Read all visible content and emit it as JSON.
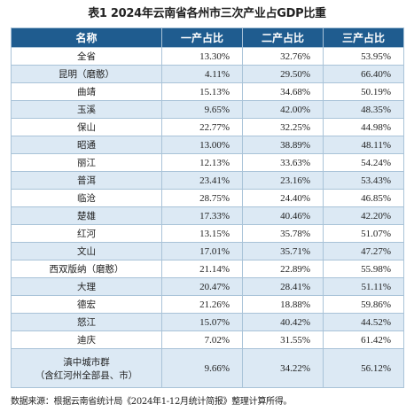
{
  "title": "表1 2024年云南省各州市三次产业占GDP比重",
  "headers": [
    "名称",
    "一产占比",
    "二产占比",
    "三产占比"
  ],
  "rows": [
    {
      "name": "全省",
      "primary": "13.30%",
      "secondary": "32.76%",
      "tertiary": "53.95%"
    },
    {
      "name": "昆明（磨憨）",
      "primary": "4.11%",
      "secondary": "29.50%",
      "tertiary": "66.40%"
    },
    {
      "name": "曲靖",
      "primary": "15.13%",
      "secondary": "34.68%",
      "tertiary": "50.19%"
    },
    {
      "name": "玉溪",
      "primary": "9.65%",
      "secondary": "42.00%",
      "tertiary": "48.35%"
    },
    {
      "name": "保山",
      "primary": "22.77%",
      "secondary": "32.25%",
      "tertiary": "44.98%"
    },
    {
      "name": "昭通",
      "primary": "13.00%",
      "secondary": "38.89%",
      "tertiary": "48.11%"
    },
    {
      "name": "丽江",
      "primary": "12.13%",
      "secondary": "33.63%",
      "tertiary": "54.24%"
    },
    {
      "name": "普洱",
      "primary": "23.41%",
      "secondary": "23.16%",
      "tertiary": "53.43%"
    },
    {
      "name": "临沧",
      "primary": "28.75%",
      "secondary": "24.40%",
      "tertiary": "46.85%"
    },
    {
      "name": "楚雄",
      "primary": "17.33%",
      "secondary": "40.46%",
      "tertiary": "42.20%"
    },
    {
      "name": "红河",
      "primary": "13.15%",
      "secondary": "35.78%",
      "tertiary": "51.07%"
    },
    {
      "name": "文山",
      "primary": "17.01%",
      "secondary": "35.71%",
      "tertiary": "47.27%"
    },
    {
      "name": "西双版纳（磨憨）",
      "primary": "21.14%",
      "secondary": "22.89%",
      "tertiary": "55.98%"
    },
    {
      "name": "大理",
      "primary": "20.47%",
      "secondary": "28.41%",
      "tertiary": "51.11%"
    },
    {
      "name": "德宏",
      "primary": "21.26%",
      "secondary": "18.88%",
      "tertiary": "59.86%"
    },
    {
      "name": "怒江",
      "primary": "15.07%",
      "secondary": "40.42%",
      "tertiary": "44.52%"
    },
    {
      "name": "迪庆",
      "primary": "7.02%",
      "secondary": "31.55%",
      "tertiary": "61.42%"
    }
  ],
  "last_row": {
    "name_line1": "滇中城市群",
    "name_line2": "（含红河州全部县、市）",
    "primary": "9.66%",
    "secondary": "34.22%",
    "tertiary": "56.12%"
  },
  "source_note": "数据来源：根据云南省统计局《2024年1-12月统计简报》整理计算所得。"
}
